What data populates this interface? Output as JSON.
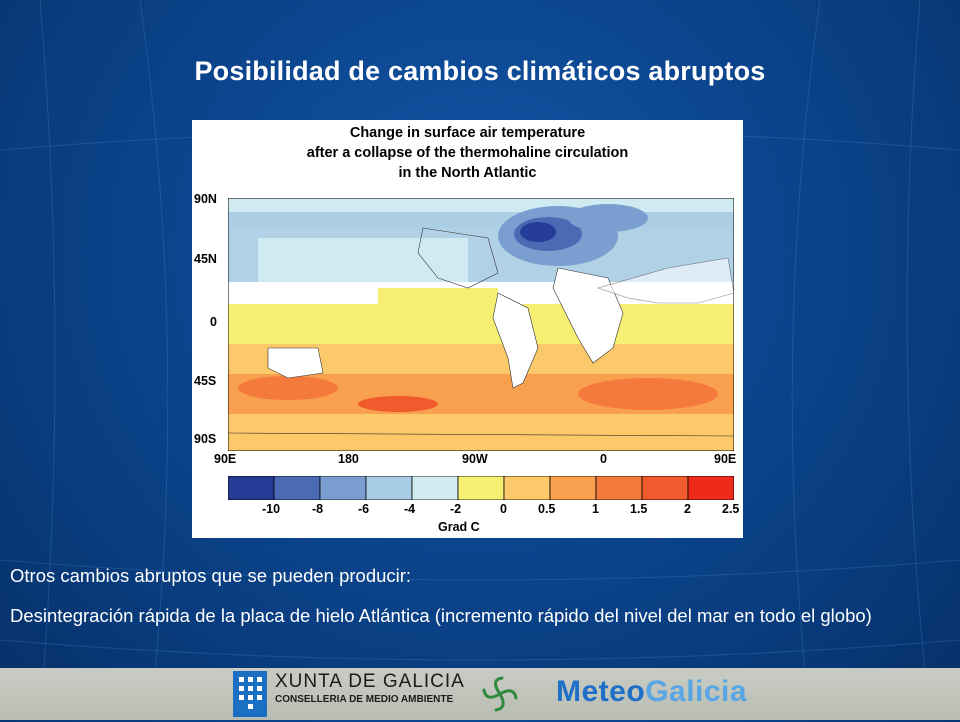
{
  "slide": {
    "title": "Posibilidad de cambios climáticos abruptos",
    "subtitle": "Otros cambios abruptos que se pueden producir:",
    "paragraph": "Desintegración rápida de la placa de hielo Atlántica (incremento rápido del nivel del mar en todo el globo)"
  },
  "figure": {
    "title_lines": [
      "Change in surface air temperature",
      "after a collapse of the thermohaline circulation",
      "in the North Atlantic"
    ],
    "lat_labels": [
      "90N",
      "45N",
      "0",
      "45S",
      "90S"
    ],
    "lon_labels": [
      "90E",
      "180",
      "90W",
      "0",
      "90E"
    ],
    "colorbar_labels": [
      "-10",
      "-8",
      "-6",
      "-4",
      "-2",
      "0",
      "0.5",
      "1",
      "1.5",
      "2",
      "2.5"
    ],
    "colorbar_colors": [
      "#243c96",
      "#4a6ab4",
      "#7a9ed0",
      "#a8cce4",
      "#cfeaf0",
      "#f7ee74",
      "#fbc86a",
      "#f8a04e",
      "#f47a3c",
      "#f05a2c",
      "#ee2a1a"
    ],
    "colorbar_unit": "Grad C"
  },
  "footer": {
    "xunta_name": "XUNTA DE GALICIA",
    "xunta_sub": "CONSELLERIA DE MEDIO AMBIENTE",
    "meteo_part1": "Meteo",
    "meteo_part2": "Galicia"
  },
  "colors": {
    "background": "#0c4690",
    "footer": "#c3c6bd",
    "meteo_blue": "#1d6fc8",
    "meteo_light": "#5aa6e4"
  }
}
